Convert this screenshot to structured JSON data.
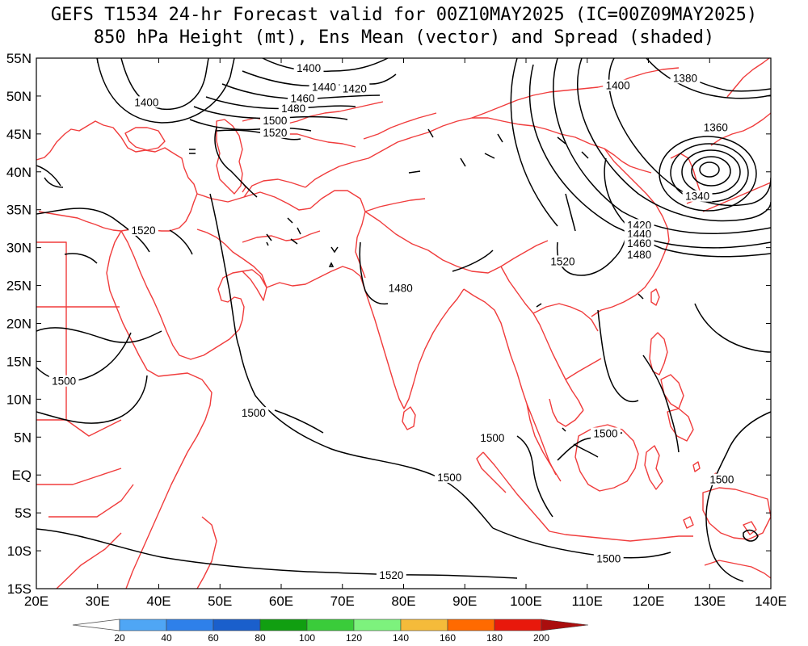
{
  "title_line1": "GEFS T1534 24-hr Forecast valid for 00Z10MAY2025 (IC=00Z09MAY2025)",
  "title_line2": "850 hPa Height (mt), Ens Mean (vector) and Spread (shaded)",
  "lat_labels": [
    "55N",
    "50N",
    "45N",
    "40N",
    "35N",
    "30N",
    "25N",
    "20N",
    "15N",
    "10N",
    "5N",
    "EQ",
    "5S",
    "10S",
    "15S"
  ],
  "lon_labels": [
    "20E",
    "30E",
    "40E",
    "50E",
    "60E",
    "70E",
    "80E",
    "90E",
    "100E",
    "110E",
    "120E",
    "130E",
    "140E"
  ],
  "contour_labels": [
    {
      "text": "1400",
      "lon": 64.5,
      "lat": 53.5
    },
    {
      "text": "1440",
      "lon": 67,
      "lat": 51.0
    },
    {
      "text": "1420",
      "lon": 72,
      "lat": 50.8
    },
    {
      "text": "1460",
      "lon": 63.5,
      "lat": 49.5
    },
    {
      "text": "1480",
      "lon": 62,
      "lat": 48.2
    },
    {
      "text": "1500",
      "lon": 59,
      "lat": 46.6
    },
    {
      "text": "1520",
      "lon": 59,
      "lat": 45.0
    },
    {
      "text": "1400",
      "lon": 38,
      "lat": 49.0
    },
    {
      "text": "1400",
      "lon": 115,
      "lat": 51.2
    },
    {
      "text": "1380",
      "lon": 126,
      "lat": 52.2
    },
    {
      "text": "1360",
      "lon": 131,
      "lat": 45.7
    },
    {
      "text": "1340",
      "lon": 128,
      "lat": 36.6
    },
    {
      "text": "1420",
      "lon": 118.5,
      "lat": 32.8
    },
    {
      "text": "1440",
      "lon": 118.5,
      "lat": 31.6
    },
    {
      "text": "1460",
      "lon": 118.5,
      "lat": 30.4
    },
    {
      "text": "1480",
      "lon": 118.5,
      "lat": 28.9
    },
    {
      "text": "1520",
      "lon": 37.5,
      "lat": 32.1
    },
    {
      "text": "1520",
      "lon": 106,
      "lat": 28.0
    },
    {
      "text": "1480",
      "lon": 79.5,
      "lat": 24.5
    },
    {
      "text": "1500",
      "lon": 24.5,
      "lat": 12.2
    },
    {
      "text": "1500",
      "lon": 55.5,
      "lat": 8.0
    },
    {
      "text": "1500",
      "lon": 94.5,
      "lat": 4.7
    },
    {
      "text": "1500",
      "lon": 113,
      "lat": 5.3
    },
    {
      "text": "1500",
      "lon": 87.5,
      "lat": -0.5
    },
    {
      "text": "1500",
      "lon": 132,
      "lat": -0.8
    },
    {
      "text": "1500",
      "lon": 113.5,
      "lat": -11.2
    },
    {
      "text": "1520",
      "lon": 78,
      "lat": -13.4
    }
  ],
  "colorbar": {
    "labels": [
      "20",
      "40",
      "60",
      "80",
      "100",
      "120",
      "140",
      "160",
      "180",
      "200"
    ],
    "colors": [
      "#ffffff",
      "#4fa6f5",
      "#2e80ea",
      "#1a5fcc",
      "#119f11",
      "#3acc3a",
      "#7df27d",
      "#f5bb3a",
      "#ff6a00",
      "#e8180c",
      "#aa0e0e"
    ]
  },
  "colors": {
    "coast": "#f03c3c",
    "contour": "#000000",
    "frame": "#000000"
  }
}
